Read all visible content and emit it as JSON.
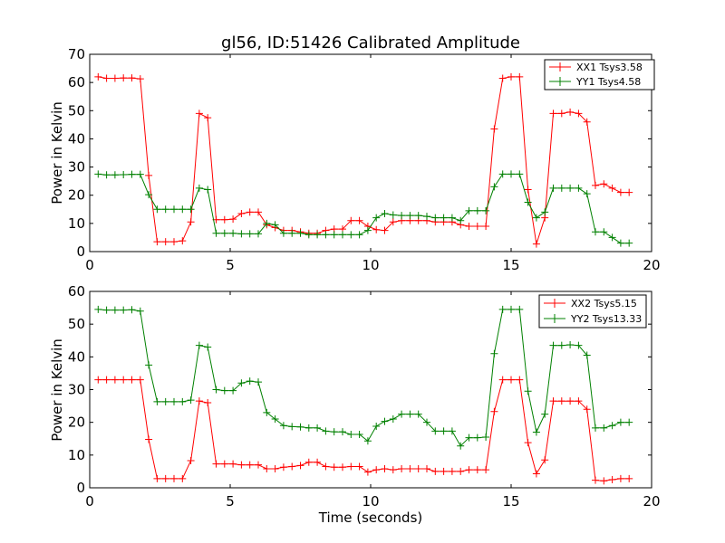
{
  "chart_data": [
    {
      "type": "line",
      "title": "gl56, ID:51426 Calibrated Amplitude",
      "xlabel": "",
      "ylabel": "Power in Kelvin",
      "xlim": [
        0,
        20
      ],
      "ylim": [
        0,
        70
      ],
      "xticks": [
        0,
        5,
        10,
        15,
        20
      ],
      "yticks": [
        0,
        10,
        20,
        30,
        40,
        50,
        60,
        70
      ],
      "grid": false,
      "legend_position": "top-right",
      "x": [
        0.3,
        0.6,
        0.9,
        1.2,
        1.5,
        1.8,
        2.1,
        2.4,
        2.7,
        3.0,
        3.3,
        3.6,
        3.9,
        4.2,
        4.5,
        4.8,
        5.1,
        5.4,
        5.7,
        6.0,
        6.3,
        6.6,
        6.9,
        7.2,
        7.5,
        7.8,
        8.1,
        8.4,
        8.7,
        9.0,
        9.3,
        9.6,
        9.9,
        10.2,
        10.5,
        10.8,
        11.1,
        11.4,
        11.7,
        12.0,
        12.3,
        12.6,
        12.9,
        13.2,
        13.5,
        13.8,
        14.1,
        14.4,
        14.7,
        15.0,
        15.3,
        15.6,
        15.9,
        16.2,
        16.5,
        16.8,
        17.1,
        17.4,
        17.7,
        18.0,
        18.3,
        18.6,
        18.9,
        19.2
      ],
      "series": [
        {
          "name": "XX1 Tsys3.58",
          "color": "#ff0000",
          "values": [
            62,
            61.5,
            61.5,
            61.6,
            61.6,
            61.3,
            27,
            3.5,
            3.5,
            3.5,
            3.8,
            10.5,
            49,
            47.5,
            11.3,
            11.3,
            11.5,
            13.5,
            14,
            14,
            9.5,
            8.5,
            7.5,
            7.5,
            7,
            6.5,
            6.5,
            7.5,
            8,
            8,
            11,
            11,
            9,
            7.8,
            7.5,
            10.5,
            11,
            11,
            11,
            11,
            10.5,
            10.5,
            10.5,
            9.5,
            9,
            9,
            9,
            43.5,
            61.5,
            62,
            62,
            22,
            2.7,
            12,
            49,
            49,
            49.5,
            49,
            46,
            23.5,
            24,
            22.5,
            21,
            21
          ]
        },
        {
          "name": "YY1 Tsys4.58",
          "color": "#008000",
          "values": [
            27.5,
            27.2,
            27.2,
            27.3,
            27.4,
            27.4,
            20.2,
            15,
            15,
            15,
            15,
            15,
            22.5,
            22,
            6.5,
            6.5,
            6.5,
            6.3,
            6.3,
            6.3,
            10,
            9.5,
            6.5,
            6.5,
            6.5,
            6,
            6,
            6,
            6,
            6,
            6,
            6,
            7.5,
            12,
            13.5,
            13,
            12.8,
            12.8,
            12.8,
            12.5,
            12,
            12,
            12,
            11,
            14.5,
            14.5,
            14.5,
            23,
            27.5,
            27.5,
            27.5,
            17.5,
            12,
            14,
            22.5,
            22.5,
            22.5,
            22.5,
            20.5,
            7,
            7,
            5,
            3,
            3
          ]
        }
      ]
    },
    {
      "type": "line",
      "title": "",
      "xlabel": "Time (seconds)",
      "ylabel": "Power in Kelvin",
      "xlim": [
        0,
        20
      ],
      "ylim": [
        0,
        60
      ],
      "xticks": [
        0,
        5,
        10,
        15,
        20
      ],
      "yticks": [
        0,
        10,
        20,
        30,
        40,
        50,
        60
      ],
      "grid": false,
      "legend_position": "top-right",
      "x": [
        0.3,
        0.6,
        0.9,
        1.2,
        1.5,
        1.8,
        2.1,
        2.4,
        2.7,
        3.0,
        3.3,
        3.6,
        3.9,
        4.2,
        4.5,
        4.8,
        5.1,
        5.4,
        5.7,
        6.0,
        6.3,
        6.6,
        6.9,
        7.2,
        7.5,
        7.8,
        8.1,
        8.4,
        8.7,
        9.0,
        9.3,
        9.6,
        9.9,
        10.2,
        10.5,
        10.8,
        11.1,
        11.4,
        11.7,
        12.0,
        12.3,
        12.6,
        12.9,
        13.2,
        13.5,
        13.8,
        14.1,
        14.4,
        14.7,
        15.0,
        15.3,
        15.6,
        15.9,
        16.2,
        16.5,
        16.8,
        17.1,
        17.4,
        17.7,
        18.0,
        18.3,
        18.6,
        18.9,
        19.2
      ],
      "series": [
        {
          "name": "XX2 Tsys5.15",
          "color": "#ff0000",
          "values": [
            33,
            33,
            33,
            33,
            33,
            33,
            14.8,
            2.8,
            2.8,
            2.8,
            2.8,
            8.3,
            26.5,
            26,
            7.3,
            7.3,
            7.3,
            7,
            7,
            7,
            5.8,
            5.8,
            6.3,
            6.5,
            6.8,
            7.8,
            7.8,
            6.5,
            6.3,
            6.3,
            6.5,
            6.5,
            4.8,
            5.5,
            5.8,
            5.5,
            5.8,
            5.8,
            5.8,
            5.8,
            5,
            5,
            5,
            5,
            5.5,
            5.5,
            5.5,
            23.3,
            33,
            33,
            33,
            13.8,
            4.3,
            8.5,
            26.5,
            26.5,
            26.5,
            26.5,
            24,
            2.3,
            2.1,
            2.5,
            2.8,
            2.8
          ]
        },
        {
          "name": "YY2 Tsys13.33",
          "color": "#008000",
          "values": [
            54.5,
            54.3,
            54.3,
            54.3,
            54.4,
            54,
            37.5,
            26.3,
            26.3,
            26.3,
            26.3,
            26.8,
            43.5,
            43,
            30,
            29.7,
            29.7,
            32,
            32.6,
            32.3,
            23,
            21,
            19,
            18.7,
            18.6,
            18.3,
            18.3,
            17.3,
            17.1,
            17.1,
            16.3,
            16.3,
            14.3,
            18.8,
            20.3,
            21,
            22.5,
            22.5,
            22.5,
            20,
            17.3,
            17.3,
            17.3,
            12.8,
            15.3,
            15.3,
            15.5,
            41,
            54.5,
            54.5,
            54.5,
            29.5,
            17,
            22.5,
            43.5,
            43.5,
            43.7,
            43.5,
            40.5,
            18.3,
            18.3,
            19,
            20,
            20
          ]
        }
      ]
    }
  ]
}
